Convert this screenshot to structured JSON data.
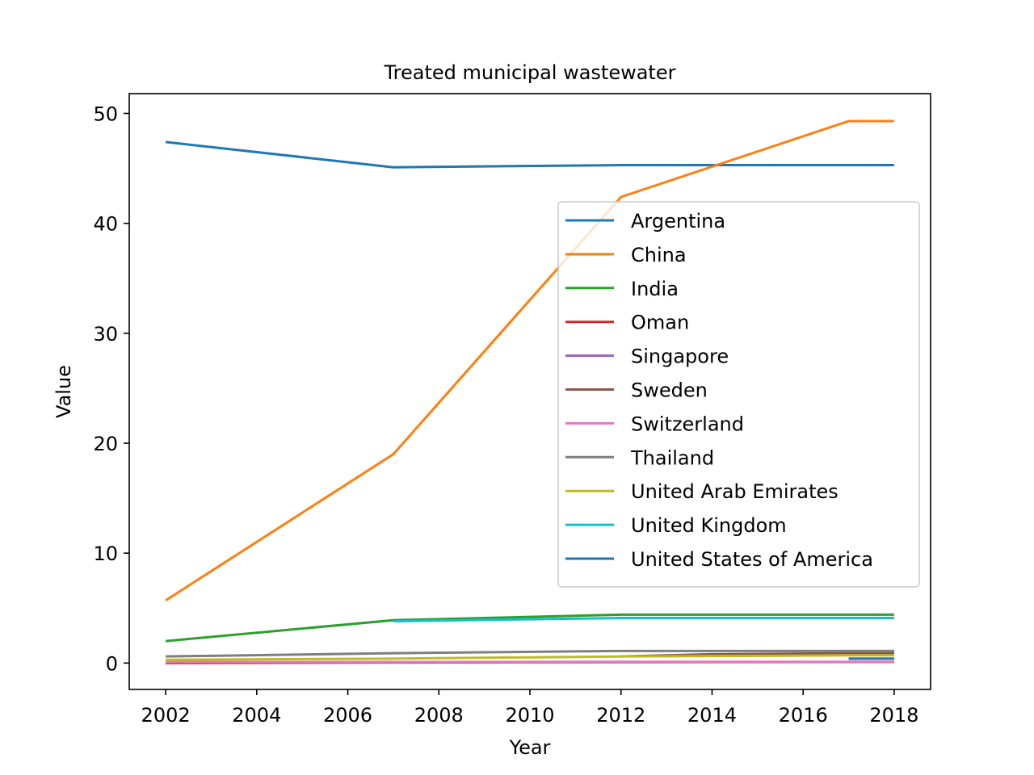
{
  "chart_data": {
    "type": "line",
    "title": "Treated municipal wastewater",
    "xlabel": "Year",
    "ylabel": "Value",
    "xlim": [
      2001.2,
      2018.8
    ],
    "ylim": [
      -2.4,
      51.8
    ],
    "xticks": [
      2002,
      2004,
      2006,
      2008,
      2010,
      2012,
      2014,
      2016,
      2018
    ],
    "yticks": [
      0,
      10,
      20,
      30,
      40,
      50
    ],
    "legend_position": "center-right",
    "series": [
      {
        "name": "Argentina",
        "color": "#1f77b4",
        "points": [
          [
            2002,
            47.4
          ],
          [
            2007,
            45.1
          ],
          [
            2012,
            45.3
          ],
          [
            2017,
            45.3
          ],
          [
            2018,
            45.3
          ]
        ]
      },
      {
        "name": "China",
        "color": "#ff7f0e",
        "points": [
          [
            2002,
            5.7
          ],
          [
            2007,
            19.0
          ],
          [
            2012,
            42.4
          ],
          [
            2017,
            49.3
          ],
          [
            2018,
            49.3
          ]
        ]
      },
      {
        "name": "India",
        "color": "#2ca02c",
        "points": [
          [
            2002,
            2.0
          ],
          [
            2007,
            3.9
          ],
          [
            2012,
            4.4
          ],
          [
            2017,
            4.4
          ],
          [
            2018,
            4.4
          ]
        ]
      },
      {
        "name": "Oman",
        "color": "#d62728",
        "points": [
          [
            2002,
            0.0
          ],
          [
            2007,
            0.05
          ],
          [
            2012,
            0.08
          ],
          [
            2017,
            0.1
          ],
          [
            2018,
            0.1
          ]
        ]
      },
      {
        "name": "Singapore",
        "color": "#9467bd",
        "points": [
          [
            2017,
            0.4
          ],
          [
            2018,
            0.4
          ]
        ]
      },
      {
        "name": "Sweden",
        "color": "#8c564b",
        "points": [
          [
            2012,
            0.6
          ],
          [
            2014,
            0.8
          ],
          [
            2017,
            0.9
          ],
          [
            2018,
            0.9
          ]
        ]
      },
      {
        "name": "Switzerland",
        "color": "#e377c2",
        "points": [
          [
            2002,
            0.1
          ],
          [
            2007,
            0.1
          ],
          [
            2012,
            0.12
          ],
          [
            2017,
            0.12
          ],
          [
            2018,
            0.12
          ]
        ]
      },
      {
        "name": "Thailand",
        "color": "#7f7f7f",
        "points": [
          [
            2002,
            0.6
          ],
          [
            2007,
            0.9
          ],
          [
            2012,
            1.1
          ],
          [
            2017,
            1.1
          ],
          [
            2018,
            1.1
          ]
        ]
      },
      {
        "name": "United Arab Emirates",
        "color": "#bcbd22",
        "points": [
          [
            2002,
            0.3
          ],
          [
            2007,
            0.4
          ],
          [
            2012,
            0.6
          ],
          [
            2017,
            0.7
          ],
          [
            2018,
            0.7
          ]
        ]
      },
      {
        "name": "United Kingdom",
        "color": "#17becf",
        "points": [
          [
            2007,
            3.8
          ],
          [
            2012,
            4.1
          ],
          [
            2017,
            4.1
          ],
          [
            2018,
            4.1
          ]
        ]
      },
      {
        "name": "United States of America",
        "color": "#1f77b4",
        "points": [
          [
            2017,
            0.4
          ],
          [
            2018,
            0.4
          ]
        ]
      }
    ]
  }
}
